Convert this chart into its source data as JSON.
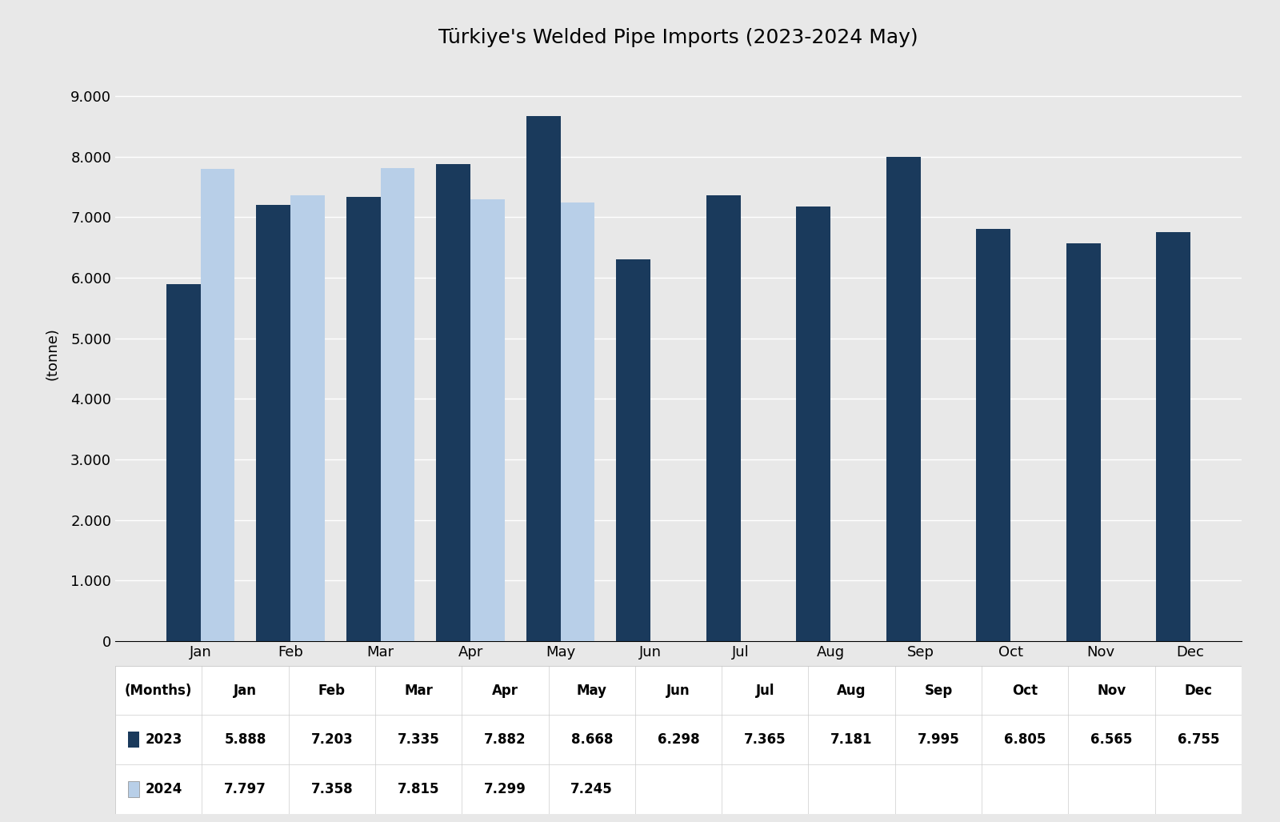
{
  "title": "Türkiye's Welded Pipe Imports (2023-2024 May)",
  "ylabel": "(tonne)",
  "xlabel": "(Months)",
  "months": [
    "Jan",
    "Feb",
    "Mar",
    "Apr",
    "May",
    "Jun",
    "Jul",
    "Aug",
    "Sep",
    "Oct",
    "Nov",
    "Dec"
  ],
  "data_2023": [
    5888,
    7203,
    7335,
    7882,
    8668,
    6298,
    7365,
    7181,
    7995,
    6805,
    6565,
    6755
  ],
  "data_2024": [
    7797,
    7358,
    7815,
    7299,
    7245,
    null,
    null,
    null,
    null,
    null,
    null,
    null
  ],
  "labels_2023": [
    "5.888",
    "7.203",
    "7.335",
    "7.882",
    "8.668",
    "6.298",
    "7.365",
    "7.181",
    "7.995",
    "6.805",
    "6.565",
    "6.755"
  ],
  "labels_2024": [
    "7.797",
    "7.358",
    "7.815",
    "7.299",
    "7.245",
    "",
    "",
    "",
    "",
    "",
    "",
    ""
  ],
  "color_2023": "#1a3a5c",
  "color_2024": "#b8cfe8",
  "background_color": "#e8e8e8",
  "yticks": [
    0,
    1000,
    2000,
    3000,
    4000,
    5000,
    6000,
    7000,
    8000,
    9000
  ],
  "ylim": [
    0,
    9500
  ],
  "bar_width": 0.38,
  "title_fontsize": 18,
  "axis_label_fontsize": 13,
  "tick_fontsize": 13,
  "table_fontsize": 12
}
